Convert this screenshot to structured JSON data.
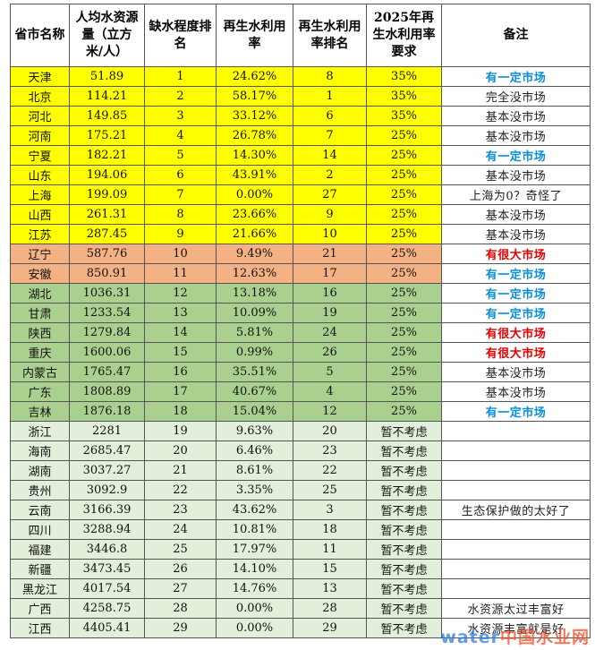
{
  "headers": [
    "省市名称",
    "人均水资源量（立方米/人）",
    "缺水程度排名",
    "再生水利用率",
    "再生水利用率排名",
    "2025年再生水利用率要求",
    "备注"
  ],
  "colors": {
    "yellow": "#ffff00",
    "orange": "#f4b183",
    "green": "#a9d08e",
    "pale": "#e2efda",
    "note_blue": "#0b8dd8",
    "note_red": "#e60000"
  },
  "rows": [
    {
      "name": "天津",
      "water": "51.89",
      "rank": "1",
      "rate": "24.62%",
      "rate_rank": "8",
      "req": "35%",
      "note": "有一定市场",
      "group": "yellow",
      "note_style": "blue"
    },
    {
      "name": "北京",
      "water": "114.21",
      "rank": "2",
      "rate": "58.17%",
      "rate_rank": "1",
      "req": "35%",
      "note": "完全没市场",
      "group": "yellow",
      "note_style": "black"
    },
    {
      "name": "河北",
      "water": "149.85",
      "rank": "3",
      "rate": "33.12%",
      "rate_rank": "6",
      "req": "35%",
      "note": "基本没市场",
      "group": "yellow",
      "note_style": "black"
    },
    {
      "name": "河南",
      "water": "175.21",
      "rank": "4",
      "rate": "26.78%",
      "rate_rank": "7",
      "req": "25%",
      "note": "基本没市场",
      "group": "yellow",
      "note_style": "black"
    },
    {
      "name": "宁夏",
      "water": "182.21",
      "rank": "5",
      "rate": "14.30%",
      "rate_rank": "14",
      "req": "25%",
      "note": "有一定市场",
      "group": "yellow",
      "note_style": "blue"
    },
    {
      "name": "山东",
      "water": "194.06",
      "rank": "6",
      "rate": "43.91%",
      "rate_rank": "2",
      "req": "25%",
      "note": "基本没市场",
      "group": "yellow",
      "note_style": "black"
    },
    {
      "name": "上海",
      "water": "199.09",
      "rank": "7",
      "rate": "0.00%",
      "rate_rank": "27",
      "req": "25%",
      "note": "上海为0？奇怪了",
      "group": "yellow",
      "note_style": "black"
    },
    {
      "name": "山西",
      "water": "261.31",
      "rank": "8",
      "rate": "23.66%",
      "rate_rank": "9",
      "req": "25%",
      "note": "基本没市场",
      "group": "yellow",
      "note_style": "black"
    },
    {
      "name": "江苏",
      "water": "287.45",
      "rank": "9",
      "rate": "21.66%",
      "rate_rank": "10",
      "req": "25%",
      "note": "基本没市场",
      "group": "yellow",
      "note_style": "black"
    },
    {
      "name": "辽宁",
      "water": "587.76",
      "rank": "10",
      "rate": "9.49%",
      "rate_rank": "21",
      "req": "25%",
      "note": "有很大市场",
      "group": "orange",
      "note_style": "red"
    },
    {
      "name": "安徽",
      "water": "850.91",
      "rank": "11",
      "rate": "12.63%",
      "rate_rank": "17",
      "req": "25%",
      "note": "有一定市场",
      "group": "orange",
      "note_style": "blue"
    },
    {
      "name": "湖北",
      "water": "1036.31",
      "rank": "12",
      "rate": "13.18%",
      "rate_rank": "16",
      "req": "25%",
      "note": "有一定市场",
      "group": "green",
      "note_style": "blue"
    },
    {
      "name": "甘肃",
      "water": "1233.54",
      "rank": "13",
      "rate": "10.09%",
      "rate_rank": "19",
      "req": "25%",
      "note": "有一定市场",
      "group": "green",
      "note_style": "blue"
    },
    {
      "name": "陕西",
      "water": "1279.84",
      "rank": "14",
      "rate": "5.81%",
      "rate_rank": "24",
      "req": "25%",
      "note": "有很大市场",
      "group": "green",
      "note_style": "red"
    },
    {
      "name": "重庆",
      "water": "1600.06",
      "rank": "15",
      "rate": "0.99%",
      "rate_rank": "26",
      "req": "25%",
      "note": "有很大市场",
      "group": "green",
      "note_style": "red"
    },
    {
      "name": "内蒙古",
      "water": "1765.47",
      "rank": "16",
      "rate": "35.51%",
      "rate_rank": "5",
      "req": "25%",
      "note": "基本没市场",
      "group": "green",
      "note_style": "black"
    },
    {
      "name": "广东",
      "water": "1808.89",
      "rank": "17",
      "rate": "40.67%",
      "rate_rank": "4",
      "req": "25%",
      "note": "基本没市场",
      "group": "green",
      "note_style": "black"
    },
    {
      "name": "吉林",
      "water": "1876.18",
      "rank": "18",
      "rate": "15.04%",
      "rate_rank": "12",
      "req": "25%",
      "note": "有一定市场",
      "group": "green",
      "note_style": "blue"
    },
    {
      "name": "浙江",
      "water": "2281",
      "rank": "19",
      "rate": "9.63%",
      "rate_rank": "20",
      "req": "暂不考虑",
      "note": "",
      "group": "pale",
      "note_style": "black"
    },
    {
      "name": "海南",
      "water": "2685.47",
      "rank": "20",
      "rate": "6.46%",
      "rate_rank": "23",
      "req": "暂不考虑",
      "note": "",
      "group": "pale",
      "note_style": "black"
    },
    {
      "name": "湖南",
      "water": "3037.27",
      "rank": "21",
      "rate": "8.61%",
      "rate_rank": "22",
      "req": "暂不考虑",
      "note": "",
      "group": "pale",
      "note_style": "black"
    },
    {
      "name": "贵州",
      "water": "3092.9",
      "rank": "22",
      "rate": "3.35%",
      "rate_rank": "25",
      "req": "暂不考虑",
      "note": "",
      "group": "pale",
      "note_style": "black"
    },
    {
      "name": "云南",
      "water": "3166.39",
      "rank": "23",
      "rate": "43.62%",
      "rate_rank": "3",
      "req": "暂不考虑",
      "note": "生态保护做的太好了",
      "group": "pale",
      "note_style": "black"
    },
    {
      "name": "四川",
      "water": "3288.94",
      "rank": "24",
      "rate": "10.81%",
      "rate_rank": "18",
      "req": "暂不考虑",
      "note": "",
      "group": "pale",
      "note_style": "black"
    },
    {
      "name": "福建",
      "water": "3446.8",
      "rank": "25",
      "rate": "17.97%",
      "rate_rank": "11",
      "req": "暂不考虑",
      "note": "",
      "group": "pale",
      "note_style": "black"
    },
    {
      "name": "新疆",
      "water": "3473.45",
      "rank": "26",
      "rate": "14.10%",
      "rate_rank": "15",
      "req": "暂不考虑",
      "note": "",
      "group": "pale",
      "note_style": "black"
    },
    {
      "name": "黑龙江",
      "water": "4017.54",
      "rank": "27",
      "rate": "14.76%",
      "rate_rank": "13",
      "req": "暂不考虑",
      "note": "",
      "group": "pale",
      "note_style": "black"
    },
    {
      "name": "广西",
      "water": "4258.75",
      "rank": "28",
      "rate": "0.00%",
      "rate_rank": "28",
      "req": "暂不考虑",
      "note": "水资源太过丰富好",
      "group": "pale",
      "note_style": "black"
    },
    {
      "name": "江西",
      "water": "4405.41",
      "rank": "29",
      "rate": "0.00%",
      "rate_rank": "29",
      "req": "暂不考虑",
      "note": "水资源丰富就是好",
      "group": "pale",
      "note_style": "black"
    }
  ],
  "watermark": {
    "part1": "water",
    "part2": "中国水业网"
  }
}
